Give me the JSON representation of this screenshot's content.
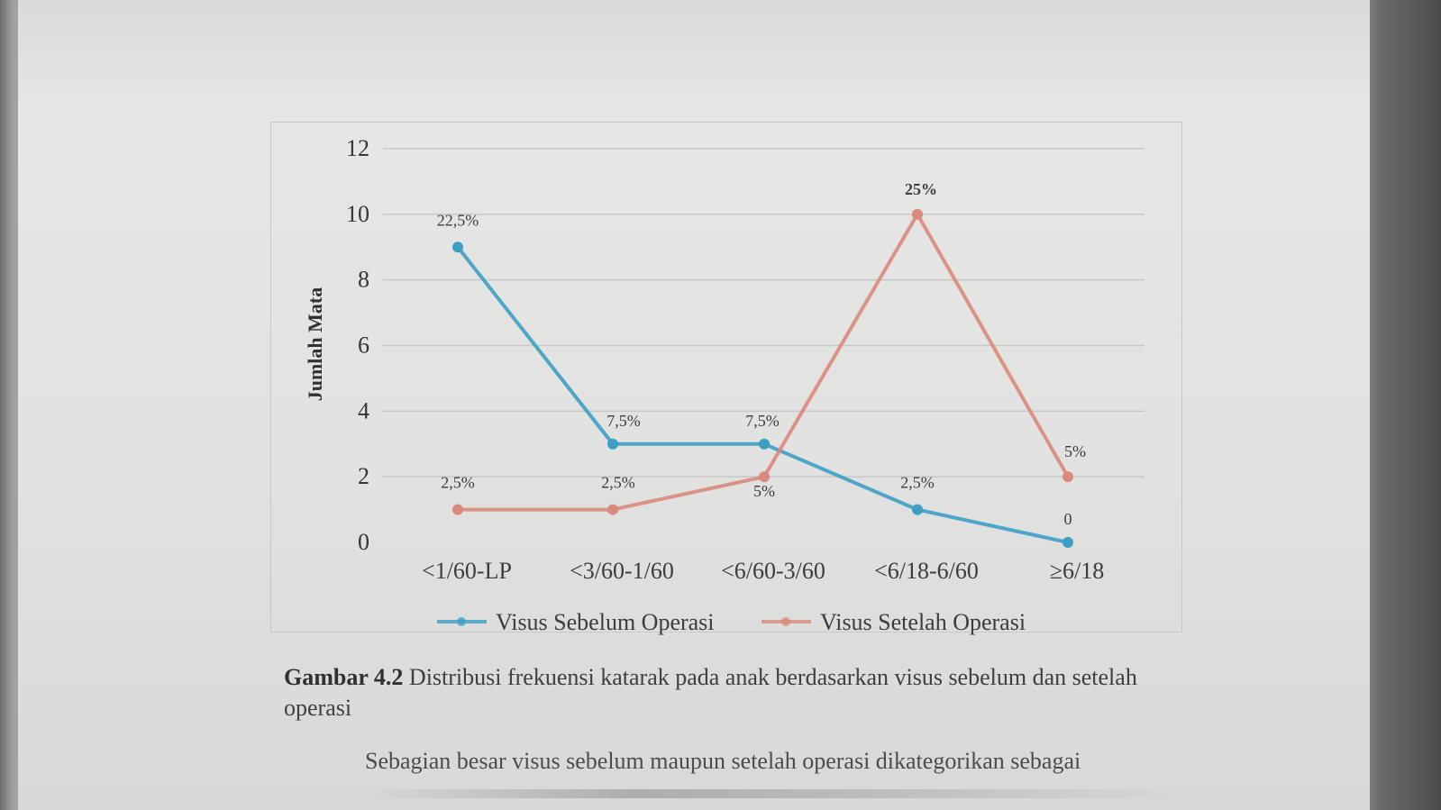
{
  "chart_data": {
    "type": "line",
    "categories": [
      "<1/60-LP",
      "<3/60-1/60",
      "<6/60-3/60",
      "<6/18-6/60",
      "≥6/18"
    ],
    "ylabel": "Jumlah Mata",
    "ylim": [
      0,
      12
    ],
    "yticks": [
      "0",
      "2",
      "4",
      "6",
      "8",
      "10",
      "12"
    ],
    "grid": true,
    "legend_placement": "bottom",
    "series": [
      {
        "name": "Visus Sebelum Operasi",
        "color": "#3d9fc4",
        "values": [
          9,
          3,
          3,
          1,
          0
        ],
        "labels": [
          "22,5%",
          "7,5%",
          "7,5%",
          "2,5%",
          "0"
        ]
      },
      {
        "name": "Visus Setelah Operasi",
        "color": "#d98a7c",
        "values": [
          1,
          1,
          2,
          10,
          2
        ],
        "labels": [
          "2,5%",
          "2,5%",
          "5%",
          "25%",
          "5%"
        ]
      }
    ]
  },
  "caption": {
    "label": "Gambar 4.2",
    "text": " Distribusi frekuensi katarak pada anak berdasarkan visus sebelum dan setelah operasi"
  },
  "paragraph": {
    "text": "Sebagian besar visus sebelum maupun setelah operasi dikategorikan sebagai"
  }
}
